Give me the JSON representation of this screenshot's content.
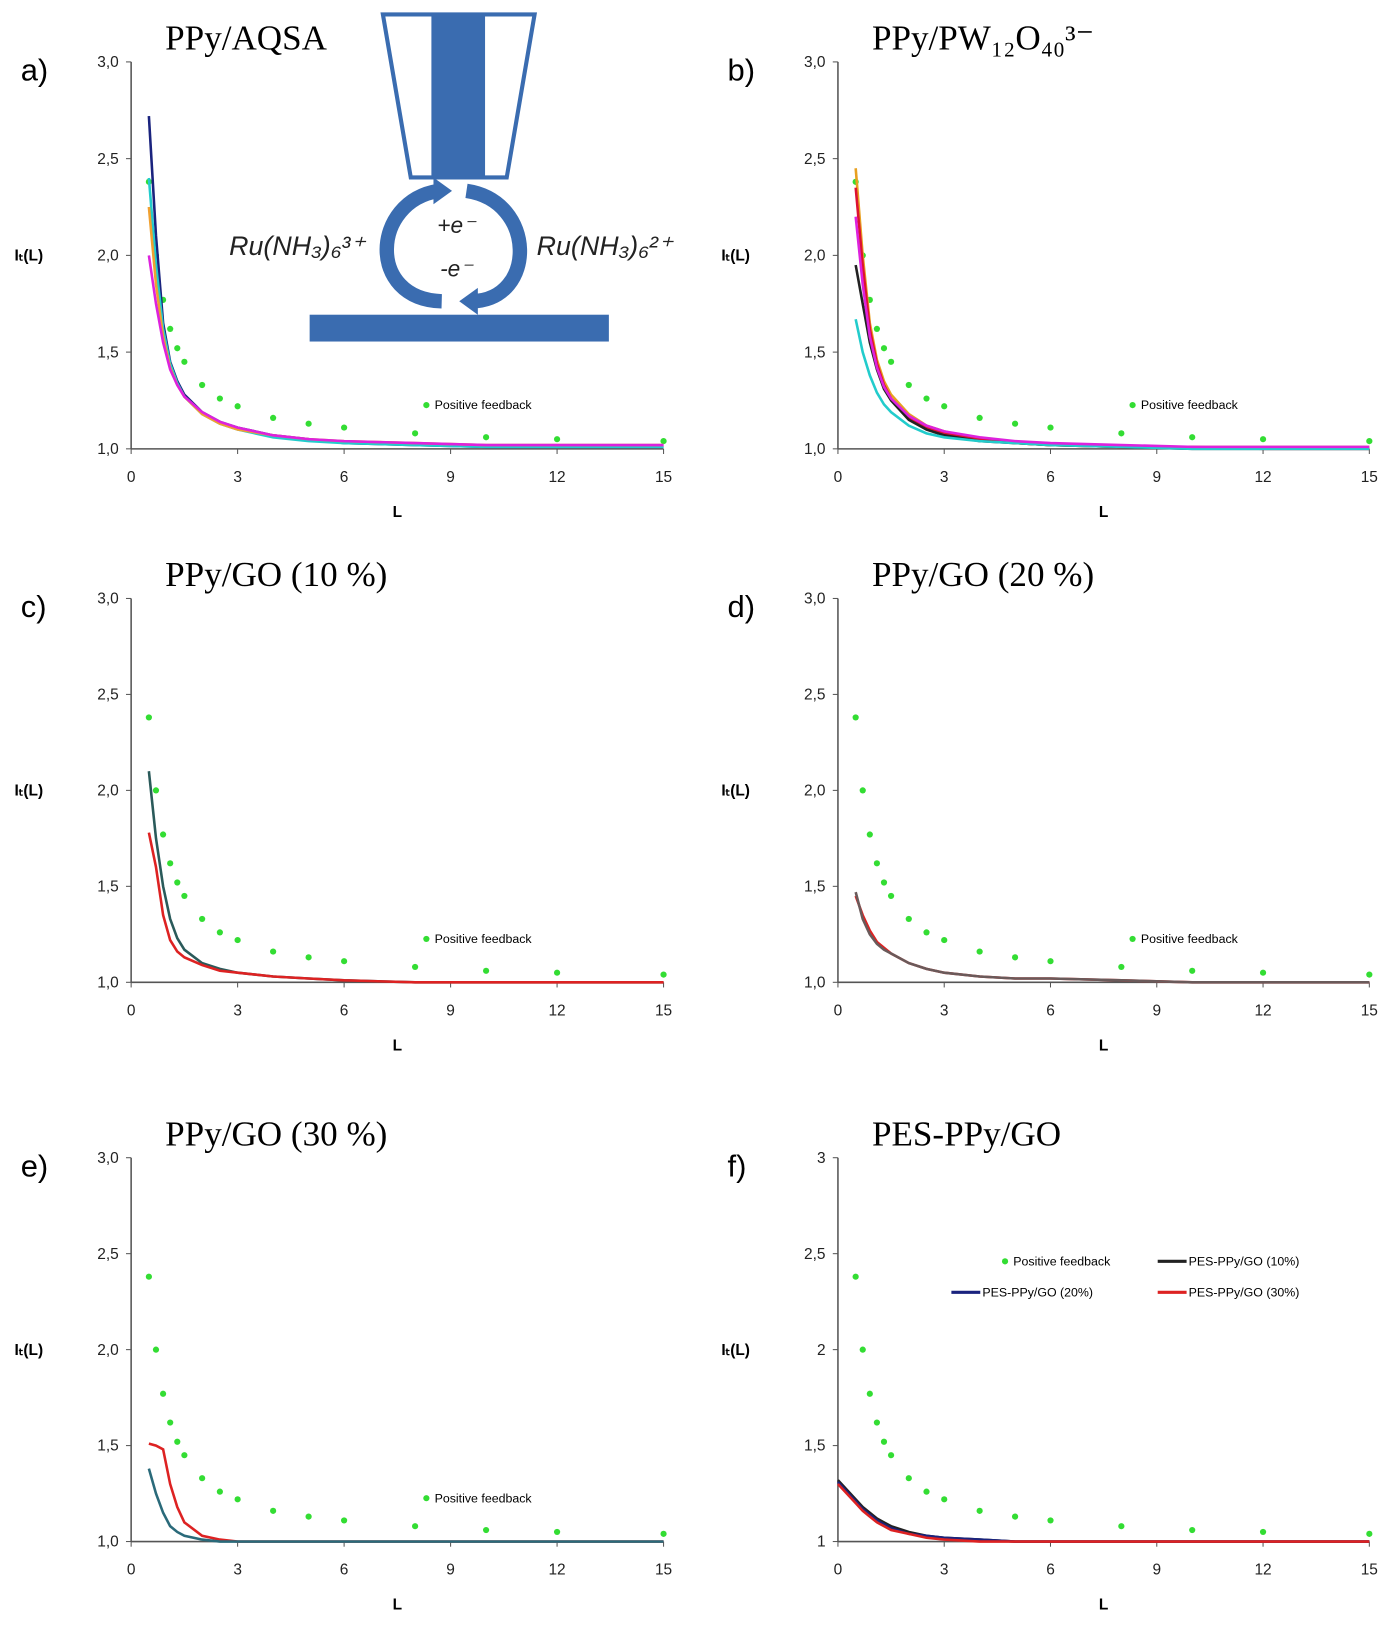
{
  "chart_data": [
    {
      "type": "line",
      "panel": "a)",
      "title": "PPy/AQSA",
      "xlabel": "L",
      "ylabel": "Iₜ(L)",
      "annotations": [
        "Ru(NH₃)₆³⁺",
        "+e⁻",
        "-e⁻",
        "Ru(NH₃)₆²⁺"
      ],
      "xlim": [
        0,
        15
      ],
      "ylim": [
        1,
        3
      ],
      "xticks": [
        0,
        3,
        6,
        9,
        12,
        15
      ],
      "yticks": [
        {
          "value": 1,
          "label": "1,0"
        },
        {
          "value": 1.5,
          "label": "1,5"
        },
        {
          "value": 2,
          "label": "2,0"
        },
        {
          "value": 2.5,
          "label": "2,5"
        },
        {
          "value": 3,
          "label": "3,0"
        }
      ],
      "legend": "right",
      "x": [
        0.5,
        0.7,
        0.9,
        1.1,
        1.3,
        1.5,
        2,
        2.5,
        3,
        4,
        5,
        6,
        8,
        10,
        12,
        15
      ],
      "series": [
        {
          "name": "Positive feedback",
          "color": "#33dd33",
          "style": "markers",
          "values": [
            2.38,
            2.0,
            1.77,
            1.62,
            1.52,
            1.45,
            1.33,
            1.26,
            1.22,
            1.16,
            1.13,
            1.11,
            1.08,
            1.06,
            1.05,
            1.04
          ]
        },
        {
          "color": "#1a237e",
          "values": [
            2.72,
            2.1,
            1.65,
            1.45,
            1.35,
            1.28,
            1.19,
            1.14,
            1.11,
            1.07,
            1.05,
            1.03,
            1.02,
            1.01,
            1.01,
            1.01
          ]
        },
        {
          "color": "#22cccc",
          "values": [
            2.4,
            1.95,
            1.62,
            1.44,
            1.34,
            1.27,
            1.18,
            1.13,
            1.1,
            1.06,
            1.04,
            1.03,
            1.02,
            1.01,
            1.01,
            1.01
          ]
        },
        {
          "color": "#f0a030",
          "values": [
            2.25,
            1.85,
            1.58,
            1.42,
            1.33,
            1.27,
            1.18,
            1.13,
            1.1,
            1.07,
            1.05,
            1.04,
            1.03,
            1.02,
            1.02,
            1.02
          ]
        },
        {
          "color": "#dd22dd",
          "values": [
            2.0,
            1.75,
            1.55,
            1.41,
            1.33,
            1.27,
            1.19,
            1.14,
            1.11,
            1.07,
            1.05,
            1.04,
            1.03,
            1.02,
            1.02,
            1.02
          ]
        }
      ]
    },
    {
      "type": "line",
      "panel": "b)",
      "title": "PPy/PW₁₂O₄₀³⁻",
      "xlabel": "L",
      "ylabel": "Iₜ(L)",
      "xlim": [
        0,
        15
      ],
      "ylim": [
        1,
        3
      ],
      "xticks": [
        0,
        3,
        6,
        9,
        12,
        15
      ],
      "yticks": [
        {
          "value": 1,
          "label": "1,0"
        },
        {
          "value": 1.5,
          "label": "1,5"
        },
        {
          "value": 2,
          "label": "2,0"
        },
        {
          "value": 2.5,
          "label": "2,5"
        },
        {
          "value": 3,
          "label": "3,0"
        }
      ],
      "legend": "right",
      "x": [
        0.5,
        0.7,
        0.9,
        1.1,
        1.3,
        1.5,
        2,
        2.5,
        3,
        4,
        5,
        6,
        8,
        10,
        12,
        15
      ],
      "series": [
        {
          "name": "Positive feedback",
          "color": "#33dd33",
          "style": "markers",
          "values": [
            2.38,
            2.0,
            1.77,
            1.62,
            1.52,
            1.45,
            1.33,
            1.26,
            1.22,
            1.16,
            1.13,
            1.11,
            1.08,
            1.06,
            1.05,
            1.04
          ]
        },
        {
          "color": "#e8a020",
          "values": [
            2.45,
            2.0,
            1.65,
            1.46,
            1.35,
            1.28,
            1.18,
            1.12,
            1.09,
            1.05,
            1.03,
            1.02,
            1.01,
            1.01,
            1.01,
            1.01
          ]
        },
        {
          "color": "#dd1133",
          "values": [
            2.35,
            1.95,
            1.62,
            1.44,
            1.33,
            1.26,
            1.16,
            1.11,
            1.08,
            1.05,
            1.03,
            1.02,
            1.01,
            1.01,
            1.0,
            1.0
          ]
        },
        {
          "color": "#222222",
          "values": [
            1.95,
            1.75,
            1.55,
            1.41,
            1.31,
            1.25,
            1.15,
            1.1,
            1.07,
            1.04,
            1.03,
            1.02,
            1.01,
            1.0,
            1.0,
            1.0
          ]
        },
        {
          "color": "#22cccc",
          "values": [
            1.67,
            1.5,
            1.38,
            1.29,
            1.23,
            1.19,
            1.12,
            1.08,
            1.06,
            1.04,
            1.03,
            1.02,
            1.01,
            1.0,
            1.0,
            1.0
          ]
        },
        {
          "color": "#dd22dd",
          "values": [
            2.2,
            1.85,
            1.58,
            1.42,
            1.32,
            1.26,
            1.17,
            1.12,
            1.09,
            1.06,
            1.04,
            1.03,
            1.02,
            1.01,
            1.01,
            1.01
          ]
        }
      ]
    },
    {
      "type": "line",
      "panel": "c)",
      "title": "PPy/GO (10 %)",
      "xlabel": "L",
      "ylabel": "Iₜ(L)",
      "xlim": [
        0,
        15
      ],
      "ylim": [
        1,
        3
      ],
      "xticks": [
        0,
        3,
        6,
        9,
        12,
        15
      ],
      "yticks": [
        {
          "value": 1,
          "label": "1,0"
        },
        {
          "value": 1.5,
          "label": "1,5"
        },
        {
          "value": 2,
          "label": "2,0"
        },
        {
          "value": 2.5,
          "label": "2,5"
        },
        {
          "value": 3,
          "label": "3,0"
        }
      ],
      "legend": "right",
      "x": [
        0.5,
        0.7,
        0.9,
        1.1,
        1.3,
        1.5,
        2,
        2.5,
        3,
        4,
        5,
        6,
        8,
        10,
        12,
        15
      ],
      "series": [
        {
          "name": "Positive feedback",
          "color": "#33dd33",
          "style": "markers",
          "values": [
            2.38,
            2.0,
            1.77,
            1.62,
            1.52,
            1.45,
            1.33,
            1.26,
            1.22,
            1.16,
            1.13,
            1.11,
            1.08,
            1.06,
            1.05,
            1.04
          ]
        },
        {
          "color": "#2a5a5a",
          "values": [
            2.1,
            1.75,
            1.5,
            1.33,
            1.23,
            1.17,
            1.1,
            1.07,
            1.05,
            1.03,
            1.02,
            1.01,
            1.0,
            1.0,
            1.0,
            1.0
          ]
        },
        {
          "color": "#dd2222",
          "values": [
            1.78,
            1.6,
            1.35,
            1.22,
            1.16,
            1.13,
            1.09,
            1.06,
            1.05,
            1.03,
            1.02,
            1.01,
            1.0,
            1.0,
            1.0,
            1.0
          ]
        }
      ]
    },
    {
      "type": "line",
      "panel": "d)",
      "title": "PPy/GO (20 %)",
      "xlabel": "L",
      "ylabel": "Iₜ(L)",
      "xlim": [
        0,
        15
      ],
      "ylim": [
        1,
        3
      ],
      "xticks": [
        0,
        3,
        6,
        9,
        12,
        15
      ],
      "yticks": [
        {
          "value": 1,
          "label": "1,0"
        },
        {
          "value": 1.5,
          "label": "1,5"
        },
        {
          "value": 2,
          "label": "2,0"
        },
        {
          "value": 2.5,
          "label": "2,5"
        },
        {
          "value": 3,
          "label": "3,0"
        }
      ],
      "legend": "right",
      "x": [
        0.5,
        0.7,
        0.9,
        1.1,
        1.3,
        1.5,
        2,
        2.5,
        3,
        4,
        5,
        6,
        8,
        10,
        12,
        15
      ],
      "series": [
        {
          "name": "Positive feedback",
          "color": "#33dd33",
          "style": "markers",
          "values": [
            2.38,
            2.0,
            1.77,
            1.62,
            1.52,
            1.45,
            1.33,
            1.26,
            1.22,
            1.16,
            1.13,
            1.11,
            1.08,
            1.06,
            1.05,
            1.04
          ]
        },
        {
          "color": "#dd2222",
          "values": [
            1.45,
            1.35,
            1.27,
            1.21,
            1.18,
            1.15,
            1.1,
            1.07,
            1.05,
            1.03,
            1.02,
            1.02,
            1.01,
            1.0,
            1.0,
            1.0
          ]
        },
        {
          "color": "#6a5a5a",
          "values": [
            1.47,
            1.33,
            1.25,
            1.2,
            1.17,
            1.15,
            1.1,
            1.07,
            1.05,
            1.03,
            1.02,
            1.02,
            1.01,
            1.0,
            1.0,
            1.0
          ]
        }
      ]
    },
    {
      "type": "line",
      "panel": "e)",
      "title": "PPy/GO (30 %)",
      "xlabel": "L",
      "ylabel": "Iₜ(L)",
      "xlim": [
        0,
        15
      ],
      "ylim": [
        1,
        3
      ],
      "xticks": [
        0,
        3,
        6,
        9,
        12,
        15
      ],
      "yticks": [
        {
          "value": 1,
          "label": "1,0"
        },
        {
          "value": 1.5,
          "label": "1,5"
        },
        {
          "value": 2,
          "label": "2,0"
        },
        {
          "value": 2.5,
          "label": "2,5"
        },
        {
          "value": 3,
          "label": "3,0"
        }
      ],
      "legend": "right",
      "x": [
        0.5,
        0.7,
        0.9,
        1.1,
        1.3,
        1.5,
        2,
        2.5,
        3,
        4,
        5,
        6,
        8,
        10,
        12,
        15
      ],
      "series": [
        {
          "name": "Positive feedback",
          "color": "#33dd33",
          "style": "markers",
          "values": [
            2.38,
            2.0,
            1.77,
            1.62,
            1.52,
            1.45,
            1.33,
            1.26,
            1.22,
            1.16,
            1.13,
            1.11,
            1.08,
            1.06,
            1.05,
            1.04
          ]
        },
        {
          "color": "#dd2222",
          "values": [
            1.51,
            1.5,
            1.48,
            1.3,
            1.18,
            1.1,
            1.03,
            1.01,
            1.0,
            1.0,
            1.0,
            1.0,
            1.0,
            1.0,
            1.0,
            1.0
          ]
        },
        {
          "color": "#2a6a7a",
          "values": [
            1.38,
            1.25,
            1.15,
            1.08,
            1.05,
            1.03,
            1.01,
            1.0,
            1.0,
            1.0,
            1.0,
            1.0,
            1.0,
            1.0,
            1.0,
            1.0
          ]
        }
      ]
    },
    {
      "type": "line",
      "panel": "f)",
      "title": "PES-PPy/GO",
      "xlabel": "L",
      "ylabel": "Iₜ(L)",
      "xlim": [
        0,
        15
      ],
      "ylim": [
        1,
        3
      ],
      "xticks": [
        0,
        3,
        6,
        9,
        12,
        15
      ],
      "yticks": [
        1,
        {
          "value": 1.5,
          "label": "1,5"
        },
        2,
        {
          "value": 2.5,
          "label": "2,5"
        },
        3
      ],
      "legend": "upper right",
      "x": [
        0,
        0.5,
        0.7,
        0.9,
        1.1,
        1.3,
        1.5,
        2,
        2.5,
        3,
        4,
        5,
        6,
        8,
        10,
        12,
        15
      ],
      "series": [
        {
          "name": "Positive feedback",
          "color": "#33dd33",
          "style": "markers",
          "values": [
            null,
            2.38,
            2.0,
            1.77,
            1.62,
            1.52,
            1.45,
            1.33,
            1.26,
            1.22,
            1.16,
            1.13,
            1.11,
            1.08,
            1.06,
            1.05,
            1.04
          ]
        },
        {
          "name": "PES-PPy/GO (10%)",
          "color": "#222222",
          "values": [
            1.32,
            1.22,
            1.18,
            1.15,
            1.12,
            1.1,
            1.08,
            1.05,
            1.03,
            1.02,
            1.01,
            1.0,
            1.0,
            1.0,
            1.0,
            1.0,
            1.0
          ]
        },
        {
          "name": "PES-PPy/GO (20%)",
          "color": "#1a237e",
          "values": [
            1.31,
            1.21,
            1.17,
            1.14,
            1.11,
            1.09,
            1.07,
            1.04,
            1.03,
            1.02,
            1.01,
            1.0,
            1.0,
            1.0,
            1.0,
            1.0,
            1.0
          ]
        },
        {
          "name": "PES-PPy/GO (30%)",
          "color": "#dd2222",
          "values": [
            1.3,
            1.2,
            1.16,
            1.13,
            1.1,
            1.08,
            1.06,
            1.04,
            1.02,
            1.01,
            1.0,
            1.0,
            1.0,
            1.0,
            1.0,
            1.0,
            1.0
          ]
        }
      ]
    }
  ]
}
